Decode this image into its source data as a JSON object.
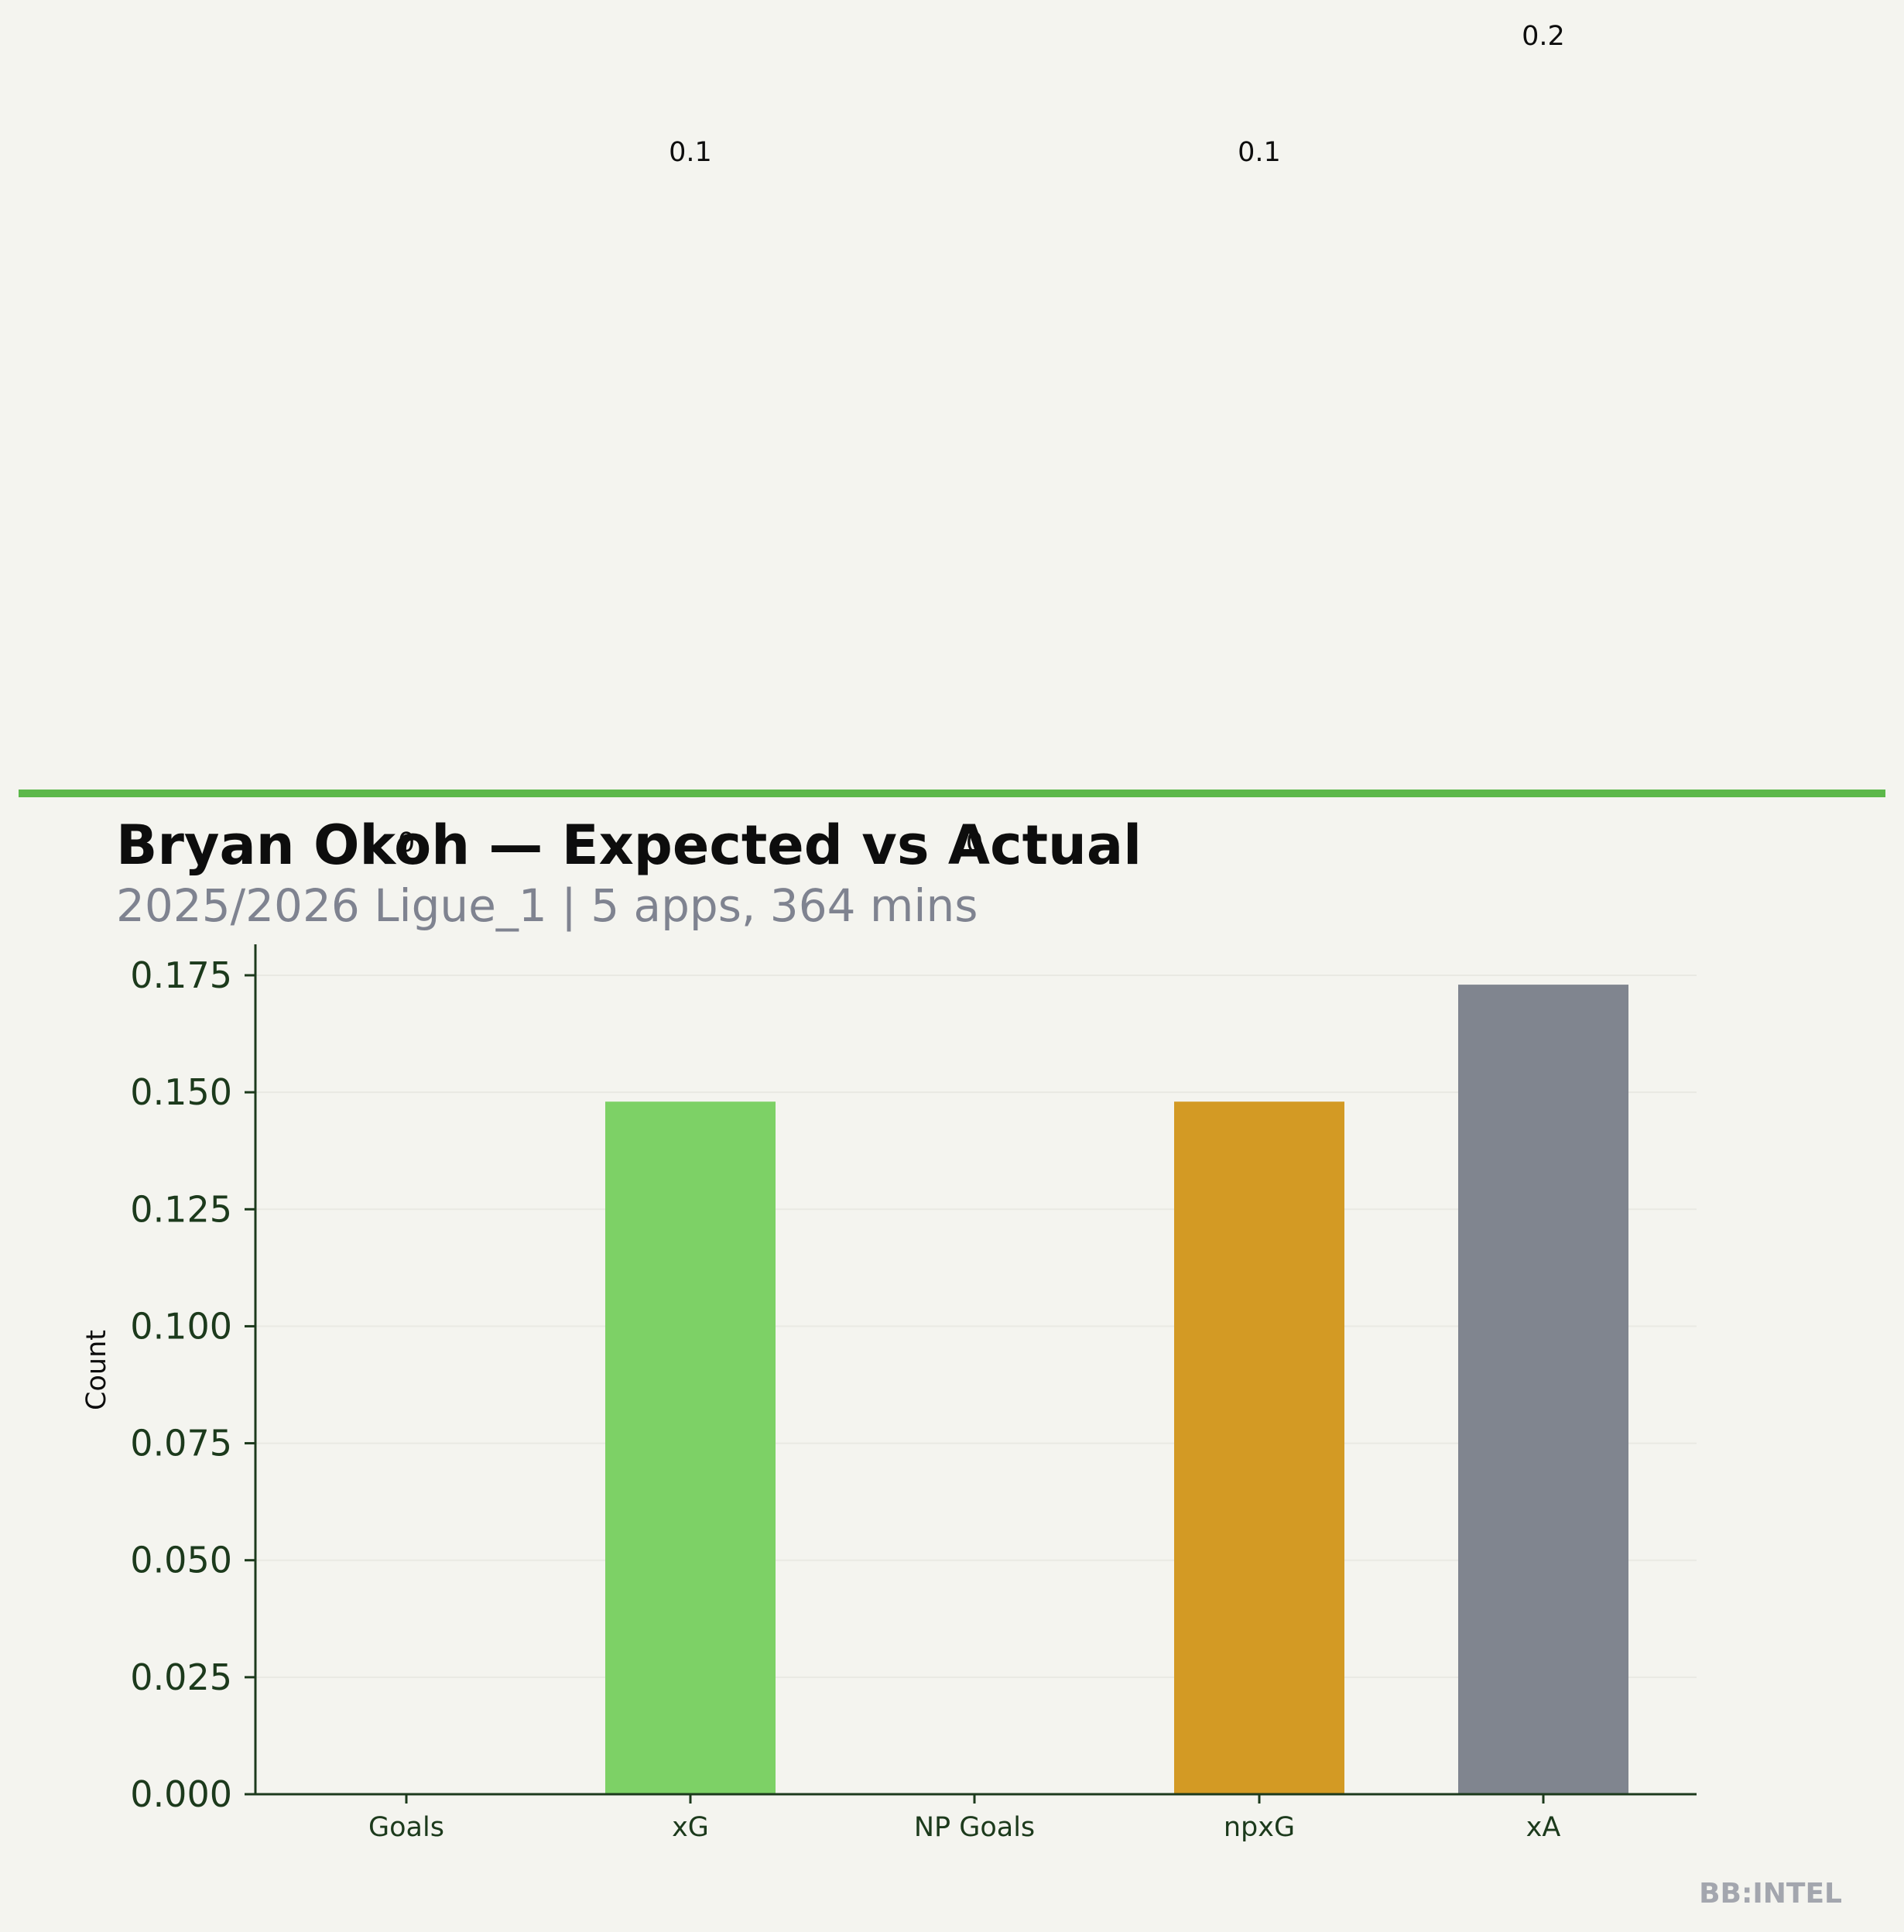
{
  "chart_data": {
    "type": "bar",
    "title": "Bryan Okoh — Expected vs Actual",
    "subtitle": "2025/2026 Ligue_1 | 5 apps, 364 mins",
    "xlabel": "",
    "ylabel": "Count",
    "categories": [
      "Goals",
      "xG",
      "NP Goals",
      "npxG",
      "xA"
    ],
    "values": [
      0,
      0.148,
      0,
      0.148,
      0.173
    ],
    "data_labels": [
      "0",
      "0.1",
      "0",
      "0.1",
      "0.2"
    ],
    "colors": [
      "#7dd166",
      "#7dd166",
      "#7dd166",
      "#d39a24",
      "#80858f"
    ],
    "ylim": [
      0,
      0.182
    ],
    "yticks": [
      0.0,
      0.025,
      0.05,
      0.075,
      0.1,
      0.125,
      0.15,
      0.175
    ],
    "ytick_labels": [
      "0.000",
      "0.025",
      "0.050",
      "0.075",
      "0.100",
      "0.125",
      "0.150",
      "0.175"
    ],
    "grid": true,
    "accent_color": "#5cb84a",
    "axis_color": "#1c3a1c"
  },
  "brand": "BB:INTEL"
}
